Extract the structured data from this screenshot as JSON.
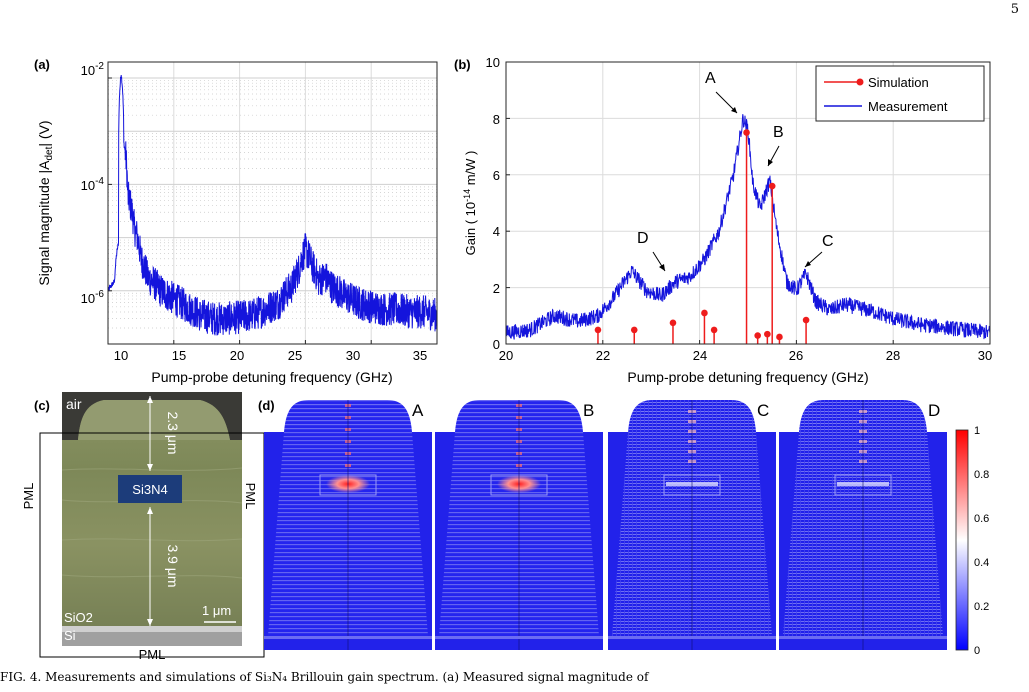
{
  "page": {
    "number": "5",
    "caption_partial": "FIG. 4. Measurements and simulations of Si₃N₄ Brillouin gain spectrum. (a) Measured signal magnitude of"
  },
  "panel_a": {
    "label": "(a)",
    "xlabel": "Pump-probe detuning frequency (GHz)",
    "ylabel": "Signal magnitude |A",
    "ylabel_sub": "det",
    "ylabel_tail": "| (V)",
    "x_ticks": [
      "10",
      "15",
      "20",
      "25",
      "30",
      "35"
    ],
    "y_ticks": [
      {
        "base": "10",
        "exp": "-2"
      },
      {
        "base": "10",
        "exp": "-4"
      },
      {
        "base": "10",
        "exp": "-6"
      }
    ]
  },
  "panel_b": {
    "label": "(b)",
    "xlabel": "Pump-probe detuning frequency (GHz)",
    "ylabel_pre": "Gain ( 10",
    "ylabel_exp": "-14",
    "ylabel_post": " m/W )",
    "x_ticks": [
      "20",
      "22",
      "24",
      "26",
      "28",
      "30"
    ],
    "y_ticks": [
      "0",
      "2",
      "4",
      "6",
      "8",
      "10"
    ],
    "annotations": [
      "A",
      "B",
      "C",
      "D"
    ],
    "legend": {
      "simulation": "Simulation",
      "measurement": "Measurement"
    }
  },
  "panel_c": {
    "label": "(c)",
    "air": "air",
    "core": "Si3N4",
    "dim_top": "2.3 μm",
    "dim_bottom": "3.9 μm",
    "pml_left": "PML",
    "pml_right": "PML",
    "pml_bottom": "PML",
    "sio2": "SiO2",
    "si": "Si",
    "scale_bar": "1 μm"
  },
  "panel_d": {
    "label": "(d)",
    "mode_labels": [
      "A",
      "B",
      "C",
      "D"
    ],
    "colorbar_ticks": [
      "1",
      "0.8",
      "0.6",
      "0.4",
      "0.2",
      "0"
    ]
  },
  "colors": {
    "measurement": "#1414dc",
    "simulation": "#ee1c1c",
    "sem_sio2": "#7f8a5c",
    "core": "#1c3c7a",
    "mode_bg": "#1f1fe8"
  },
  "chart_data": [
    {
      "type": "line",
      "panel": "a",
      "xlabel": "Pump-probe detuning frequency (GHz)",
      "ylabel": "Signal magnitude |Adet| (V)",
      "xlim": [
        10,
        35
      ],
      "ylim": [
        1e-07,
        0.02
      ],
      "yscale": "log",
      "grid": true,
      "series": [
        {
          "x": [
            10.0,
            10.5,
            10.8,
            11.0,
            11.2,
            11.5,
            12.0,
            12.5,
            13.0,
            14.0,
            15.0,
            16.0,
            17.0,
            18.0,
            19.0,
            20.0,
            21.0,
            22.0,
            23.0,
            24.0,
            24.5,
            25.0,
            25.5,
            26.0,
            26.5,
            27.0,
            28.0,
            29.0,
            30.0,
            31.0,
            32.0,
            33.0,
            34.0,
            35.0
          ],
          "y": [
            1e-06,
            1.5e-06,
            8e-06,
            0.012,
            0.0006,
            6e-05,
            1.5e-05,
            4e-06,
            1.8e-06,
            1e-06,
            7e-07,
            5e-07,
            3.5e-07,
            3e-07,
            3e-07,
            3.2e-07,
            3.5e-07,
            4.5e-07,
            6e-07,
            1.2e-06,
            2.5e-06,
            6e-06,
            3e-06,
            1.6e-06,
            1.8e-06,
            1.2e-06,
            8e-07,
            6e-07,
            5e-07,
            4.5e-07,
            4.5e-07,
            4e-07,
            4e-07,
            3.5e-07
          ]
        }
      ]
    },
    {
      "type": "line",
      "panel": "b",
      "xlabel": "Pump-probe detuning frequency (GHz)",
      "ylabel": "Gain ( 10-14 m/W )",
      "xlim": [
        20,
        30
      ],
      "ylim": [
        0,
        10
      ],
      "grid": true,
      "legend_position": "top-right",
      "series": [
        {
          "name": "Measurement",
          "x": [
            20.0,
            20.5,
            21.0,
            21.5,
            21.9,
            22.2,
            22.6,
            22.9,
            23.2,
            23.5,
            23.8,
            24.1,
            24.4,
            24.7,
            24.9,
            25.0,
            25.1,
            25.25,
            25.45,
            25.6,
            25.8,
            26.0,
            26.2,
            26.4,
            26.7,
            27.0,
            27.5,
            28.0,
            28.5,
            29.0,
            29.5,
            30.0
          ],
          "y": [
            0.4,
            0.5,
            1.0,
            0.8,
            1.0,
            1.6,
            2.6,
            1.9,
            1.7,
            2.2,
            2.4,
            3.0,
            4.0,
            6.0,
            8.0,
            7.6,
            5.7,
            4.8,
            5.8,
            4.0,
            2.2,
            1.9,
            2.5,
            1.5,
            1.2,
            1.4,
            1.2,
            0.9,
            0.7,
            0.6,
            0.5,
            0.4
          ]
        },
        {
          "name": "Simulation",
          "x": [
            21.9,
            22.65,
            23.45,
            24.1,
            24.3,
            24.97,
            25.2,
            25.4,
            25.5,
            25.65,
            26.2
          ],
          "y": [
            0.5,
            0.5,
            0.75,
            1.1,
            0.5,
            7.5,
            0.3,
            0.35,
            5.6,
            0.25,
            0.85
          ]
        }
      ]
    }
  ]
}
